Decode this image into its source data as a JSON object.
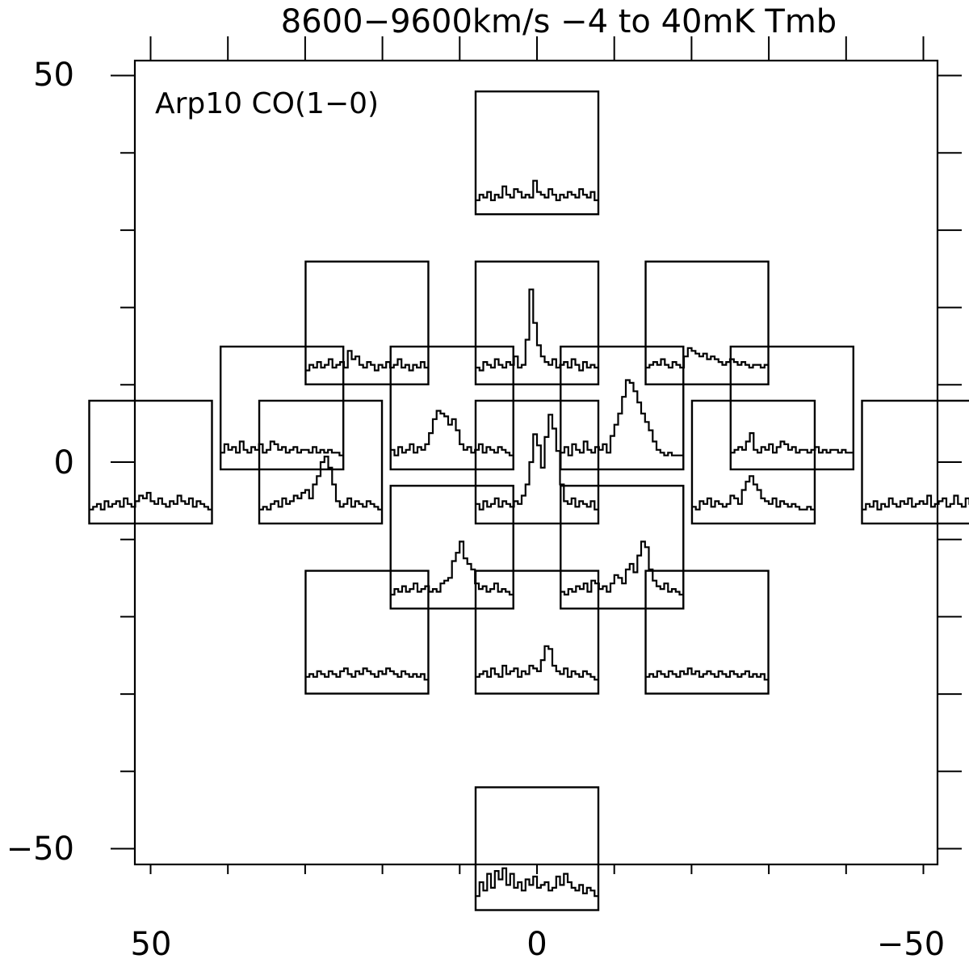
{
  "chart_data": {
    "type": "line",
    "title": "8600−9600km/s   −4 to 40mK Tmb",
    "annotation": "Arp10 CO(1−0)",
    "panel_velocity_range_kms": [
      8600,
      9600
    ],
    "panel_temperature_range_mK": [
      -4,
      40
    ],
    "xlim": [
      50,
      -50
    ],
    "ylim": [
      -50,
      50
    ],
    "x_ticklabels": [
      "50",
      "0",
      "−50"
    ],
    "y_ticklabels": [
      "50",
      "0",
      "−50"
    ],
    "series": [
      {
        "offset": [
          0,
          40
        ],
        "values": [
          1,
          3,
          2,
          4,
          1,
          3,
          2,
          6,
          3,
          2,
          5,
          4,
          2,
          3,
          2,
          8,
          4,
          3,
          2,
          5,
          3,
          1,
          3,
          2,
          4,
          3,
          2,
          5,
          3,
          2,
          4,
          1
        ]
      },
      {
        "offset": [
          22,
          18
        ],
        "values": [
          1,
          3,
          2,
          4,
          2,
          3,
          5,
          2,
          3,
          4,
          2,
          8,
          5,
          6,
          3,
          2,
          4,
          3,
          1,
          3,
          2,
          4,
          2,
          3,
          5,
          2,
          3,
          1,
          3,
          2,
          4,
          2
        ]
      },
      {
        "offset": [
          0,
          18
        ],
        "values": [
          2,
          1,
          4,
          3,
          2,
          5,
          3,
          2,
          4,
          3,
          6,
          2,
          3,
          12,
          30,
          18,
          10,
          6,
          4,
          3,
          5,
          2,
          3,
          4,
          2,
          5,
          3,
          1,
          4,
          2,
          3,
          2
        ]
      },
      {
        "offset": [
          -22,
          18
        ],
        "values": [
          2,
          3,
          4,
          3,
          5,
          3,
          2,
          4,
          3,
          2,
          6,
          9,
          8,
          7,
          6,
          7,
          5,
          6,
          5,
          4,
          3,
          4,
          5,
          4,
          3,
          4,
          3,
          2,
          3,
          3,
          2,
          3
        ]
      },
      {
        "offset": [
          33,
          7
        ],
        "values": [
          2,
          5,
          3,
          4,
          2,
          6,
          3,
          2,
          4,
          3,
          5,
          2,
          3,
          6,
          5,
          3,
          4,
          2,
          3,
          4,
          2,
          3,
          3,
          2,
          4,
          2,
          3,
          2,
          3,
          2,
          2,
          1
        ]
      },
      {
        "offset": [
          11,
          7
        ],
        "values": [
          3,
          1,
          4,
          2,
          3,
          5,
          2,
          4,
          3,
          5,
          9,
          14,
          17,
          16,
          15,
          12,
          14,
          10,
          5,
          3,
          4,
          2,
          3,
          5,
          2,
          4,
          3,
          2,
          4,
          3,
          2,
          1
        ]
      },
      {
        "offset": [
          -11,
          7
        ],
        "values": [
          2,
          4,
          1,
          5,
          3,
          2,
          6,
          3,
          2,
          4,
          3,
          5,
          2,
          8,
          12,
          16,
          22,
          28,
          27,
          24,
          20,
          16,
          13,
          10,
          6,
          3,
          2,
          1,
          2,
          1,
          1,
          1
        ]
      },
      {
        "offset": [
          -33,
          7
        ],
        "values": [
          2,
          3,
          4,
          3,
          6,
          9,
          3,
          2,
          4,
          3,
          5,
          2,
          4,
          6,
          5,
          3,
          4,
          2,
          3,
          3,
          2,
          3,
          4,
          2,
          3,
          2,
          3,
          3,
          2,
          3,
          2,
          2
        ]
      },
      {
        "offset": [
          50,
          0
        ],
        "values": [
          1,
          2,
          3,
          1,
          4,
          2,
          3,
          4,
          2,
          5,
          3,
          2,
          4,
          6,
          5,
          7,
          4,
          3,
          5,
          3,
          2,
          4,
          3,
          6,
          4,
          3,
          5,
          2,
          4,
          3,
          2,
          1
        ]
      },
      {
        "offset": [
          28,
          0
        ],
        "values": [
          1,
          2,
          1,
          3,
          4,
          2,
          5,
          3,
          4,
          6,
          5,
          7,
          8,
          5,
          10,
          13,
          18,
          20,
          16,
          10,
          4,
          2,
          3,
          5,
          2,
          4,
          3,
          2,
          4,
          3,
          2,
          1
        ]
      },
      {
        "offset": [
          0,
          0
        ],
        "values": [
          3,
          1,
          4,
          2,
          3,
          5,
          2,
          4,
          3,
          2,
          4,
          3,
          6,
          10,
          18,
          28,
          24,
          16,
          27,
          35,
          30,
          22,
          10,
          4,
          3,
          5,
          2,
          4,
          3,
          2,
          4,
          1
        ]
      },
      {
        "offset": [
          -28,
          0
        ],
        "values": [
          2,
          1,
          4,
          3,
          5,
          2,
          4,
          3,
          2,
          3,
          6,
          5,
          3,
          8,
          11,
          13,
          10,
          8,
          5,
          4,
          3,
          5,
          2,
          4,
          3,
          2,
          3,
          2,
          1,
          1,
          2,
          1
        ]
      },
      {
        "offset": [
          -50,
          0
        ],
        "values": [
          1,
          3,
          2,
          4,
          1,
          3,
          2,
          5,
          3,
          2,
          4,
          3,
          5,
          2,
          3,
          4,
          3,
          6,
          2,
          3,
          4,
          5,
          2,
          3,
          6,
          3,
          2,
          5,
          3,
          7,
          2,
          4
        ]
      },
      {
        "offset": [
          11,
          -11
        ],
        "values": [
          1,
          3,
          2,
          4,
          2,
          3,
          5,
          2,
          3,
          4,
          2,
          3,
          2,
          5,
          6,
          7,
          13,
          16,
          20,
          14,
          12,
          10,
          5,
          3,
          4,
          2,
          3,
          5,
          2,
          3,
          2,
          1
        ]
      },
      {
        "offset": [
          -11,
          -11
        ],
        "values": [
          2,
          1,
          3,
          2,
          4,
          3,
          5,
          2,
          6,
          5,
          3,
          4,
          2,
          5,
          8,
          7,
          5,
          10,
          12,
          9,
          15,
          20,
          18,
          10,
          6,
          4,
          3,
          5,
          2,
          3,
          2,
          1
        ]
      },
      {
        "offset": [
          22,
          -22
        ],
        "values": [
          2,
          3,
          2,
          4,
          3,
          2,
          4,
          3,
          2,
          4,
          5,
          3,
          2,
          4,
          3,
          5,
          4,
          3,
          2,
          4,
          3,
          5,
          4,
          3,
          2,
          4,
          3,
          2,
          3,
          2,
          3,
          1
        ]
      },
      {
        "offset": [
          0,
          -22
        ],
        "values": [
          2,
          3,
          4,
          2,
          5,
          3,
          2,
          6,
          3,
          4,
          5,
          2,
          4,
          3,
          6,
          5,
          4,
          8,
          13,
          12,
          6,
          4,
          3,
          5,
          2,
          4,
          3,
          2,
          4,
          3,
          2,
          1
        ]
      },
      {
        "offset": [
          -22,
          -22
        ],
        "values": [
          2,
          3,
          2,
          4,
          3,
          2,
          4,
          3,
          2,
          4,
          3,
          5,
          3,
          4,
          2,
          3,
          4,
          3,
          2,
          4,
          3,
          2,
          4,
          3,
          2,
          3,
          4,
          2,
          3,
          2,
          3,
          1
        ]
      },
      {
        "offset": [
          0,
          -50
        ],
        "values": [
          1,
          6,
          3,
          9,
          4,
          10,
          7,
          11,
          5,
          9,
          4,
          6,
          3,
          7,
          5,
          8,
          4,
          5,
          6,
          3,
          4,
          8,
          5,
          9,
          6,
          4,
          3,
          5,
          2,
          4,
          3,
          1
        ]
      }
    ]
  }
}
